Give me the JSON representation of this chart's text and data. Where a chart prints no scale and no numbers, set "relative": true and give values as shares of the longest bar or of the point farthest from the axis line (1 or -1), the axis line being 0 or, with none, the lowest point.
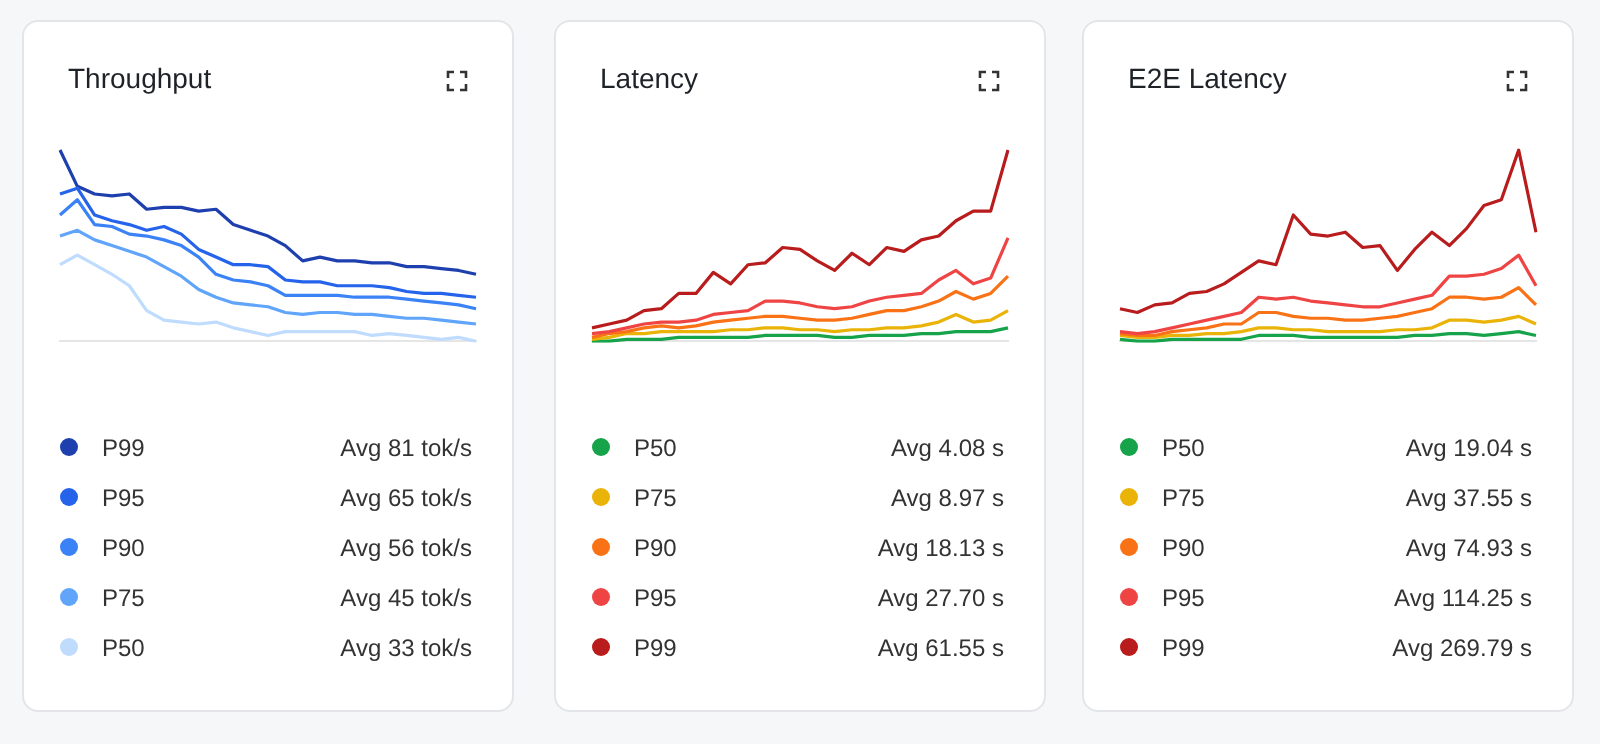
{
  "chart_data": [
    {
      "type": "line",
      "title": "Throughput",
      "relative": true,
      "grid": false,
      "marker": "none",
      "legend": "bottom",
      "categories": [
        null,
        null,
        null,
        null,
        null,
        null,
        null,
        null,
        null,
        null,
        null,
        null,
        null,
        null,
        null,
        null,
        null,
        null,
        null,
        null,
        null,
        null,
        null,
        null,
        null
      ],
      "series": [
        {
          "name": "P99",
          "color": "#1e3fae",
          "values": [
            1.0,
            0.81,
            0.77,
            0.76,
            0.77,
            0.69,
            0.7,
            0.7,
            0.68,
            0.69,
            0.61,
            0.58,
            0.55,
            0.5,
            0.42,
            0.44,
            0.42,
            0.42,
            0.41,
            0.41,
            0.39,
            0.39,
            0.38,
            0.37,
            0.35
          ]
        },
        {
          "name": "P95",
          "color": "#2563eb",
          "values": [
            0.77,
            0.8,
            0.66,
            0.63,
            0.61,
            0.58,
            0.6,
            0.56,
            0.48,
            0.44,
            0.4,
            0.4,
            0.39,
            0.32,
            0.31,
            0.31,
            0.29,
            0.29,
            0.29,
            0.28,
            0.26,
            0.25,
            0.25,
            0.24,
            0.23
          ]
        },
        {
          "name": "P90",
          "color": "#3b82f6",
          "values": [
            0.66,
            0.74,
            0.61,
            0.6,
            0.56,
            0.55,
            0.53,
            0.5,
            0.44,
            0.35,
            0.32,
            0.31,
            0.29,
            0.24,
            0.24,
            0.24,
            0.24,
            0.23,
            0.23,
            0.23,
            0.22,
            0.21,
            0.2,
            0.19,
            0.17
          ]
        },
        {
          "name": "P75",
          "color": "#60a5fa",
          "values": [
            0.55,
            0.58,
            0.53,
            0.5,
            0.47,
            0.44,
            0.39,
            0.34,
            0.27,
            0.23,
            0.2,
            0.19,
            0.18,
            0.15,
            0.14,
            0.15,
            0.15,
            0.14,
            0.14,
            0.13,
            0.12,
            0.12,
            0.11,
            0.1,
            0.09
          ]
        },
        {
          "name": "P50",
          "color": "#bfdbfe",
          "values": [
            0.4,
            0.45,
            0.4,
            0.35,
            0.29,
            0.16,
            0.11,
            0.1,
            0.09,
            0.1,
            0.07,
            0.05,
            0.03,
            0.05,
            0.05,
            0.05,
            0.05,
            0.05,
            0.03,
            0.04,
            0.03,
            0.02,
            0.01,
            0.02,
            0
          ]
        }
      ],
      "annotations": [
        "Avg 81 tok/s",
        "Avg 65 tok/s",
        "Avg 56 tok/s",
        "Avg 45 tok/s",
        "Avg 33 tok/s"
      ]
    },
    {
      "type": "line",
      "title": "Latency",
      "relative": true,
      "grid": false,
      "marker": "none",
      "legend": "bottom",
      "categories": [
        null,
        null,
        null,
        null,
        null,
        null,
        null,
        null,
        null,
        null,
        null,
        null,
        null,
        null,
        null,
        null,
        null,
        null,
        null,
        null,
        null,
        null,
        null,
        null,
        null
      ],
      "series": [
        {
          "name": "P50",
          "color": "#16a34a",
          "values": [
            0,
            0,
            0.01,
            0.01,
            0.01,
            0.02,
            0.02,
            0.02,
            0.02,
            0.02,
            0.03,
            0.03,
            0.03,
            0.03,
            0.02,
            0.02,
            0.03,
            0.03,
            0.03,
            0.04,
            0.04,
            0.05,
            0.05,
            0.05,
            0.07
          ]
        },
        {
          "name": "P75",
          "color": "#eab308",
          "values": [
            0.01,
            0.02,
            0.04,
            0.04,
            0.05,
            0.05,
            0.05,
            0.05,
            0.06,
            0.06,
            0.07,
            0.07,
            0.06,
            0.06,
            0.05,
            0.06,
            0.06,
            0.07,
            0.07,
            0.08,
            0.1,
            0.14,
            0.1,
            0.11,
            0.16
          ]
        },
        {
          "name": "P90",
          "color": "#f97316",
          "values": [
            0.02,
            0.04,
            0.05,
            0.07,
            0.08,
            0.07,
            0.08,
            0.1,
            0.11,
            0.12,
            0.13,
            0.13,
            0.12,
            0.11,
            0.11,
            0.12,
            0.14,
            0.16,
            0.16,
            0.18,
            0.21,
            0.26,
            0.22,
            0.25,
            0.34
          ]
        },
        {
          "name": "P95",
          "color": "#ef4444",
          "values": [
            0.04,
            0.05,
            0.07,
            0.09,
            0.1,
            0.1,
            0.11,
            0.14,
            0.15,
            0.16,
            0.21,
            0.21,
            0.2,
            0.18,
            0.17,
            0.18,
            0.21,
            0.23,
            0.24,
            0.25,
            0.32,
            0.37,
            0.3,
            0.33,
            0.54
          ]
        },
        {
          "name": "P99",
          "color": "#b91c1c",
          "values": [
            0.07,
            0.09,
            0.11,
            0.16,
            0.17,
            0.25,
            0.25,
            0.36,
            0.3,
            0.4,
            0.41,
            0.49,
            0.48,
            0.42,
            0.37,
            0.46,
            0.4,
            0.49,
            0.47,
            0.53,
            0.55,
            0.63,
            0.68,
            0.68,
            1
          ]
        }
      ],
      "annotations": [
        "Avg 4.08 s",
        "Avg 8.97 s",
        "Avg 18.13 s",
        "Avg 27.70 s",
        "Avg 61.55 s"
      ]
    },
    {
      "type": "line",
      "title": "E2E Latency",
      "relative": true,
      "grid": false,
      "marker": "none",
      "legend": "bottom",
      "categories": [
        null,
        null,
        null,
        null,
        null,
        null,
        null,
        null,
        null,
        null,
        null,
        null,
        null,
        null,
        null,
        null,
        null,
        null,
        null,
        null,
        null,
        null,
        null,
        null,
        null
      ],
      "series": [
        {
          "name": "P50",
          "color": "#16a34a",
          "values": [
            0.01,
            0,
            0,
            0.01,
            0.01,
            0.01,
            0.01,
            0.01,
            0.03,
            0.03,
            0.03,
            0.02,
            0.02,
            0.02,
            0.02,
            0.02,
            0.02,
            0.03,
            0.03,
            0.04,
            0.04,
            0.03,
            0.04,
            0.05,
            0.03
          ]
        },
        {
          "name": "P75",
          "color": "#eab308",
          "values": [
            0.03,
            0.02,
            0.02,
            0.03,
            0.03,
            0.04,
            0.04,
            0.05,
            0.07,
            0.07,
            0.06,
            0.06,
            0.05,
            0.05,
            0.05,
            0.05,
            0.06,
            0.06,
            0.07,
            0.11,
            0.11,
            0.1,
            0.11,
            0.13,
            0.09
          ]
        },
        {
          "name": "P90",
          "color": "#f97316",
          "values": [
            0.04,
            0.03,
            0.03,
            0.05,
            0.06,
            0.07,
            0.09,
            0.09,
            0.15,
            0.15,
            0.13,
            0.12,
            0.12,
            0.11,
            0.11,
            0.12,
            0.13,
            0.15,
            0.17,
            0.23,
            0.23,
            0.22,
            0.23,
            0.28,
            0.19
          ]
        },
        {
          "name": "P95",
          "color": "#ef4444",
          "values": [
            0.05,
            0.04,
            0.05,
            0.07,
            0.09,
            0.11,
            0.13,
            0.15,
            0.23,
            0.22,
            0.23,
            0.21,
            0.2,
            0.19,
            0.18,
            0.18,
            0.2,
            0.22,
            0.24,
            0.34,
            0.34,
            0.35,
            0.38,
            0.45,
            0.29
          ]
        },
        {
          "name": "P99",
          "color": "#b91c1c",
          "values": [
            0.17,
            0.15,
            0.19,
            0.2,
            0.25,
            0.26,
            0.3,
            0.36,
            0.42,
            0.4,
            0.66,
            0.56,
            0.55,
            0.57,
            0.49,
            0.5,
            0.37,
            0.48,
            0.57,
            0.5,
            0.59,
            0.71,
            0.74,
            1,
            0.57
          ]
        }
      ],
      "annotations": [
        "Avg 19.04 s",
        "Avg 37.55 s",
        "Avg 74.93 s",
        "Avg 114.25 s",
        "Avg 269.79 s"
      ]
    }
  ]
}
